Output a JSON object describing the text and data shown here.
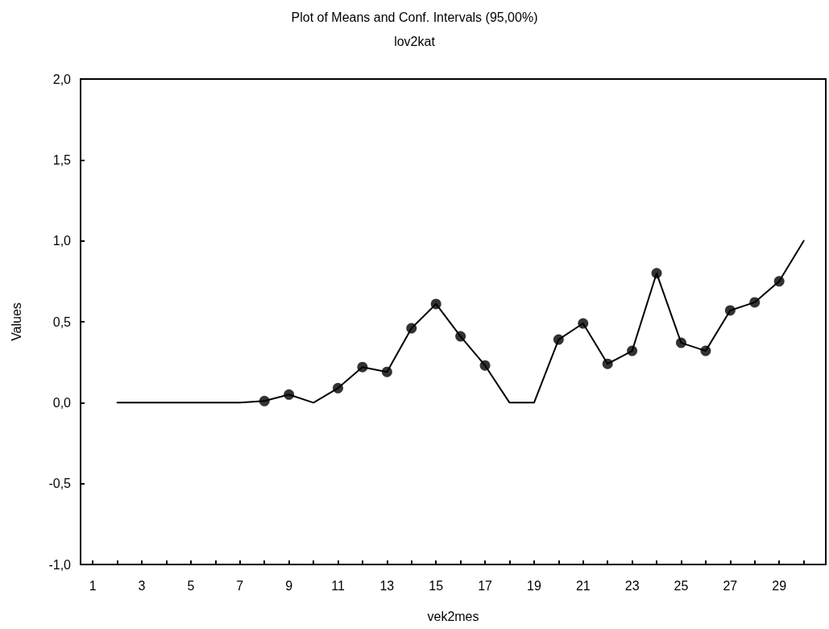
{
  "chart_data": {
    "type": "line",
    "title": "Plot of Means and Conf. Intervals (95,00%)",
    "subtitle": "lov2kat",
    "xlabel": "vek2mes",
    "ylabel": "Values",
    "series": [
      {
        "color": "#000000",
        "marker": "none",
        "x": [
          2,
          3,
          4,
          5,
          6,
          7,
          8,
          9,
          10,
          11,
          12,
          13,
          14,
          15,
          16,
          17,
          18,
          19,
          20,
          21,
          22,
          23,
          24,
          25,
          26,
          27,
          28,
          29,
          30
        ],
        "values": [
          0,
          0,
          0,
          0,
          0,
          0,
          0.01,
          0.05,
          0,
          0.09,
          0.22,
          0.19,
          0.46,
          0.61,
          0.41,
          0.23,
          0,
          0,
          0.39,
          0.49,
          0.24,
          0.32,
          0.8,
          0.37,
          0.32,
          0.57,
          0.62,
          0.75,
          1.0
        ]
      },
      {
        "type": "scatter",
        "color": "#000000",
        "marker": "circle",
        "x": [
          8,
          9,
          11,
          12,
          13,
          14,
          15,
          16,
          17,
          20,
          21,
          22,
          23,
          24,
          25,
          26,
          27,
          28,
          29
        ],
        "values": [
          0.01,
          0.05,
          0.09,
          0.22,
          0.19,
          0.46,
          0.61,
          0.41,
          0.23,
          0.39,
          0.49,
          0.24,
          0.32,
          0.8,
          0.37,
          0.32,
          0.57,
          0.62,
          0.75
        ]
      }
    ],
    "xlim": [
      0.5,
      30.9
    ],
    "xticks": [
      1,
      {
        "value": 2,
        "label": null
      },
      3,
      {
        "value": 4,
        "label": null
      },
      5,
      {
        "value": 6,
        "label": null
      },
      7,
      {
        "value": 8,
        "label": null
      },
      9,
      {
        "value": 10,
        "label": null
      },
      11,
      {
        "value": 12,
        "label": null
      },
      13,
      {
        "value": 14,
        "label": null
      },
      15,
      {
        "value": 16,
        "label": null
      },
      17,
      {
        "value": 18,
        "label": null
      },
      19,
      {
        "value": 20,
        "label": null
      },
      21,
      {
        "value": 22,
        "label": null
      },
      23,
      {
        "value": 24,
        "label": null
      },
      25,
      {
        "value": 26,
        "label": null
      },
      27,
      {
        "value": 28,
        "label": null
      },
      29,
      {
        "value": 30,
        "label": null
      }
    ],
    "ylim": [
      -1,
      2
    ],
    "yticks": [
      {
        "value": -1,
        "label": "-1,0"
      },
      {
        "value": -0.5,
        "label": "-0,5"
      },
      {
        "value": 0,
        "label": "0,0"
      },
      {
        "value": 0.5,
        "label": "0,5"
      },
      {
        "value": 1,
        "label": "1,0"
      },
      {
        "value": 1.5,
        "label": "1,5"
      },
      {
        "value": 2,
        "label": "2,0"
      }
    ],
    "grid": false,
    "line_style": "solid"
  }
}
